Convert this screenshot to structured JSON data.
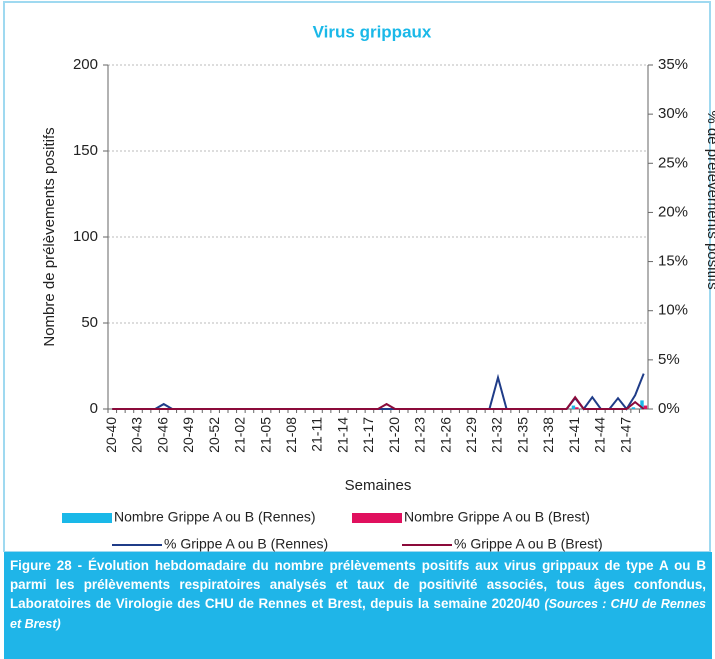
{
  "chart_data": {
    "type": "bar",
    "title": "Virus grippaux",
    "x_label": "Semaines",
    "y_label": "Nombre de prélèvements positifs",
    "y2_label": "% de prélèvements positifs",
    "categories": [
      "20-40",
      null,
      null,
      "20-43",
      null,
      null,
      "20-46",
      null,
      null,
      "20-49",
      null,
      null,
      "20-52",
      null,
      null,
      "21-02",
      null,
      null,
      "21-05",
      null,
      null,
      "21-08",
      null,
      null,
      "21-11",
      null,
      null,
      "21-14",
      null,
      null,
      "21-17",
      null,
      null,
      "21-20",
      null,
      null,
      "21-23",
      null,
      null,
      "21-26",
      null,
      null,
      "21-29",
      null,
      null,
      "21-32",
      null,
      null,
      "21-35",
      null,
      null,
      "21-38",
      null,
      null,
      "21-41",
      null,
      null,
      "21-44",
      null,
      null,
      "21-47",
      null,
      null
    ],
    "series": [
      {
        "name": "Nombre Grippe A ou B (Rennes)",
        "type": "bar",
        "color": "#1ab8e8",
        "values": [
          0,
          0,
          0,
          0,
          0,
          0,
          0,
          0,
          0,
          0,
          0,
          0,
          0,
          0,
          0,
          0,
          0,
          0,
          0,
          0,
          0,
          0,
          0,
          0,
          0,
          0,
          0,
          0,
          0,
          0,
          0,
          0,
          0,
          0,
          0,
          0,
          0,
          0,
          0,
          0,
          0,
          0,
          0,
          0,
          0,
          0,
          0,
          0,
          0,
          0,
          0,
          0,
          0,
          0,
          2,
          0,
          0,
          0,
          0,
          0,
          0,
          1,
          5
        ]
      },
      {
        "name": "Nombre Grippe A ou B (Brest)",
        "type": "bar",
        "color": "#e0105e",
        "values": [
          0,
          0,
          0,
          0,
          0,
          0,
          0,
          0,
          0,
          0,
          0,
          0,
          0,
          0,
          0,
          0,
          0,
          0,
          0,
          0,
          0,
          0,
          0,
          0,
          0,
          0,
          0,
          0,
          0,
          0,
          0,
          0,
          0,
          0,
          0,
          0,
          0,
          0,
          0,
          0,
          0,
          0,
          0,
          0,
          0,
          0,
          0,
          0,
          0,
          0,
          0,
          0,
          0,
          0,
          1,
          0,
          0,
          0,
          0,
          0,
          0,
          0,
          2
        ]
      },
      {
        "name": "% Grippe A ou B (Rennes)",
        "type": "line",
        "axis": "y2",
        "color": "#1f3c88",
        "values": [
          0,
          0,
          0,
          0,
          0,
          0,
          0.5,
          0,
          0,
          0,
          0,
          0,
          0,
          0,
          0,
          0,
          0,
          0,
          0,
          0,
          0,
          0,
          0,
          0,
          0,
          0,
          0,
          0,
          0,
          0,
          0,
          0,
          0,
          0,
          0,
          0,
          0,
          0,
          0,
          0,
          0,
          0,
          0,
          0,
          0,
          3.2,
          0,
          0,
          0,
          0,
          0,
          0,
          0,
          0,
          1.1,
          0,
          1.2,
          0,
          0,
          1.1,
          0,
          1.4,
          3.6
        ]
      },
      {
        "name": "% Grippe A ou B (Brest)",
        "type": "line",
        "axis": "y2",
        "color": "#8b0a3a",
        "values": [
          0,
          0,
          0,
          0,
          0,
          0,
          0,
          0,
          0,
          0,
          0,
          0,
          0,
          0,
          0,
          0,
          0,
          0,
          0,
          0,
          0,
          0,
          0,
          0,
          0,
          0,
          0,
          0,
          0,
          0,
          0,
          0,
          0.5,
          0,
          0,
          0,
          0,
          0,
          0,
          0,
          0,
          0,
          0,
          0,
          0,
          0,
          0,
          0,
          0,
          0,
          0,
          0,
          0,
          0,
          1.2,
          0,
          0,
          0,
          0,
          0,
          0,
          0.7,
          0
        ]
      }
    ],
    "ylim": [
      0,
      200
    ],
    "yticks": [
      0,
      50,
      100,
      150,
      200
    ],
    "y2lim": [
      0,
      35
    ],
    "y2ticks": [
      {
        "value": 0,
        "label": "0%"
      },
      {
        "value": 5,
        "label": "5%"
      },
      {
        "value": 10,
        "label": "10%"
      },
      {
        "value": 15,
        "label": "15%"
      },
      {
        "value": 20,
        "label": "20%"
      },
      {
        "value": 25,
        "label": "25%"
      },
      {
        "value": 30,
        "label": "30%"
      },
      {
        "value": 35,
        "label": "35%"
      }
    ],
    "grid": true
  },
  "caption": {
    "text": "Figure 28 - Évolution hebdomadaire du nombre prélèvements positifs aux virus grippaux de type A ou B parmi les prélèvements respiratoires analysés et taux de positivité associés, tous âges confondus, Laboratoires de Virologie des CHU de Rennes et Brest, depuis la semaine 2020/40",
    "source": "(Sources : CHU de Rennes et Brest)"
  }
}
